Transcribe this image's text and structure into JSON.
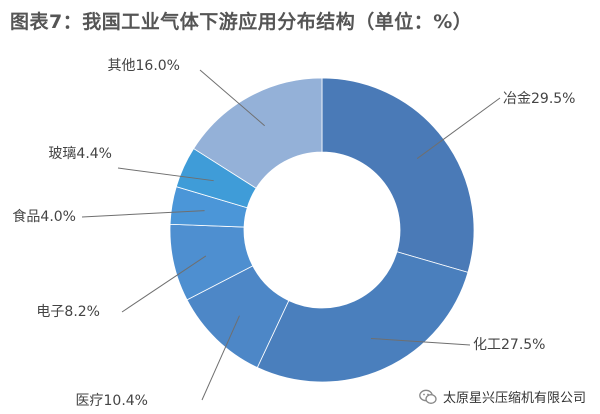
{
  "chart_data": {
    "type": "pie",
    "title": "图表7：我国工业气体下游应用分布结构（单位：%）",
    "series": [
      {
        "name": "冶金",
        "value": 29.5,
        "label": "冶金29.5%",
        "color": "#4a7ab7"
      },
      {
        "name": "化工",
        "value": 27.5,
        "label": "化工27.5%",
        "color": "#4a7fbd"
      },
      {
        "name": "医疗",
        "value": 10.4,
        "label": "医疗10.4%",
        "color": "#4d87c7"
      },
      {
        "name": "电子",
        "value": 8.2,
        "label": "电子8.2%",
        "color": "#4e8fd0"
      },
      {
        "name": "食品",
        "value": 4.0,
        "label": "食品4.0%",
        "color": "#4b96d8"
      },
      {
        "name": "玻璃",
        "value": 4.4,
        "label": "玻璃4.4%",
        "color": "#3f9cd8"
      },
      {
        "name": "其他",
        "value": 16.0,
        "label": "其他16.0%",
        "color": "#94b1d8"
      }
    ],
    "donut": true
  },
  "watermark": {
    "text": "太原星兴压缩机有限公司",
    "icon": "wechat-icon"
  }
}
